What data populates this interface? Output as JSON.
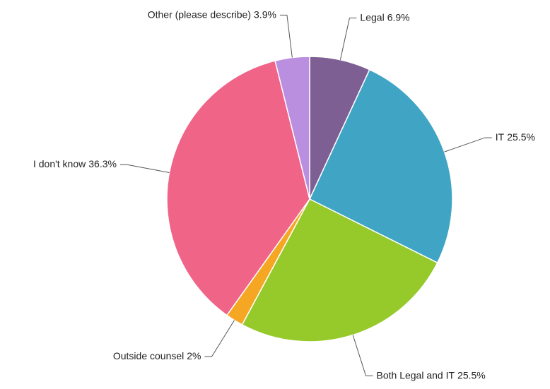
{
  "chart_data": {
    "type": "pie",
    "categories": [
      "Legal",
      "IT",
      "Both Legal and IT",
      "Outside counsel",
      "I don't know",
      "Other (please describe)"
    ],
    "values": [
      6.9,
      25.5,
      25.5,
      2,
      36.3,
      3.9
    ],
    "value_labels": [
      "6.9%",
      "25.5%",
      "25.5%",
      "2%",
      "36.3%",
      "3.9%"
    ],
    "colors": [
      "#7e5f93",
      "#40a4c4",
      "#96c92a",
      "#f5a623",
      "#f06488",
      "#bb8fe0"
    ]
  }
}
